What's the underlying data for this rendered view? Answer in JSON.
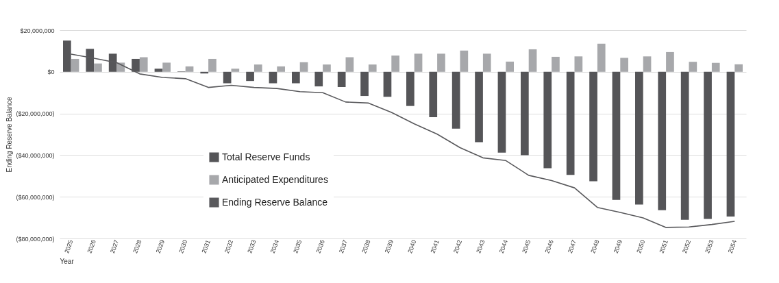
{
  "chart_data": {
    "type": "bar",
    "xlabel": "Year",
    "ylabel": "Ending Reserve Balance",
    "categories": [
      "2025",
      "2026",
      "2027",
      "2028",
      "2029",
      "2030",
      "2031",
      "2032",
      "2033",
      "2034",
      "2035",
      "2036",
      "2037",
      "2038",
      "2039",
      "2040",
      "2041",
      "2042",
      "2043",
      "2044",
      "2045",
      "2046",
      "2047",
      "2048",
      "2049",
      "2050",
      "2051",
      "2052",
      "2053",
      "2054"
    ],
    "series": [
      {
        "name": "Total Reserve Funds",
        "color": "#555558",
        "values": [
          15000000,
          11000000,
          8700000,
          6200000,
          1500000,
          200000,
          -800000,
          -5500000,
          -4400000,
          -5500000,
          -5500000,
          -7000000,
          -7300000,
          -11600000,
          -12000000,
          -16400000,
          -21800000,
          -27300000,
          -33800000,
          -38800000,
          -40000000,
          -46300000,
          -49500000,
          -52500000,
          -61500000,
          -63700000,
          -66400000,
          -71000000,
          -70600000,
          -69500000
        ]
      },
      {
        "name": "Anticipated Expenditures",
        "color": "#a7a8ab",
        "values": [
          6200000,
          4000000,
          4400000,
          7000000,
          4400000,
          2600000,
          6200000,
          1500000,
          3500000,
          2600000,
          4600000,
          3500000,
          7000000,
          3500000,
          7800000,
          8700000,
          8700000,
          10200000,
          8700000,
          4900000,
          10800000,
          7200000,
          7400000,
          13500000,
          6700000,
          7400000,
          9500000,
          4800000,
          4300000,
          3600000
        ]
      },
      {
        "name": "Ending Reserve Balance",
        "type": "line",
        "color": "#59595c",
        "values": [
          8500000,
          6500000,
          4400000,
          -1000000,
          -2700000,
          -3300000,
          -7500000,
          -6500000,
          -7500000,
          -8000000,
          -9500000,
          -10000000,
          -14500000,
          -15000000,
          -19500000,
          -25000000,
          -29900000,
          -36400000,
          -41300000,
          -42600000,
          -49700000,
          -52200000,
          -55700000,
          -65100000,
          -67500000,
          -70100000,
          -74700000,
          -74500000,
          -73300000,
          -71800000
        ]
      }
    ],
    "ylim": [
      -80000000,
      20000000
    ],
    "yticks": [
      {
        "value": -80000000,
        "label": "($80,000,000)"
      },
      {
        "value": -60000000,
        "label": "($60,000,000)"
      },
      {
        "value": -40000000,
        "label": "($40,000,000)"
      },
      {
        "value": -20000000,
        "label": "($20,000,000)"
      },
      {
        "value": 0,
        "label": "$0"
      },
      {
        "value": 20000000,
        "label": "$20,000,000"
      }
    ],
    "grid": "y",
    "legend": "left"
  }
}
